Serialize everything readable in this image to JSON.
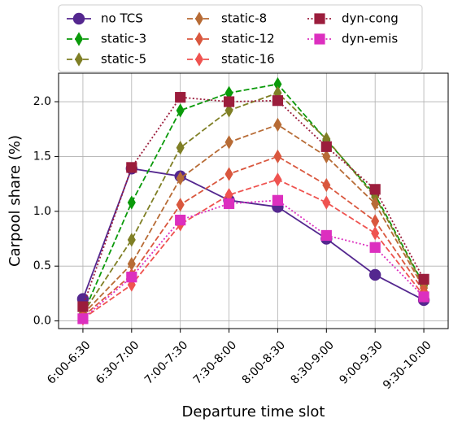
{
  "chart_data": {
    "type": "line",
    "title": "",
    "xlabel": "Departure time slot",
    "ylabel": "Carpool share (%)",
    "categories": [
      "6:00-6:30",
      "6:30-7:00",
      "7:00-7:30",
      "7:30-8:00",
      "8:00-8:30",
      "8:30-9:00",
      "9:00-9:30",
      "9:30-10:00"
    ],
    "ylim": [
      -0.07,
      2.26
    ],
    "yticks": [
      "0.0",
      "0.5",
      "1.0",
      "1.5",
      "2.0"
    ],
    "grid": true,
    "legend_position": "top, above plot, 3 columns",
    "series": [
      {
        "name": "no TCS",
        "color": "#54278f",
        "dash": "solid",
        "marker": "circle",
        "values": [
          0.2,
          1.39,
          1.32,
          1.1,
          1.04,
          0.75,
          0.42,
          0.19
        ]
      },
      {
        "name": "static-3",
        "color": "#0a9a0a",
        "dash": "dashed",
        "marker": "thin-diamond",
        "values": [
          0.06,
          1.08,
          1.92,
          2.08,
          2.16,
          1.65,
          1.15,
          0.33
        ]
      },
      {
        "name": "static-5",
        "color": "#7f7f25",
        "dash": "dashed",
        "marker": "thin-diamond",
        "values": [
          0.07,
          0.74,
          1.58,
          1.92,
          2.08,
          1.66,
          1.13,
          0.32
        ]
      },
      {
        "name": "static-8",
        "color": "#b76b35",
        "dash": "dashed",
        "marker": "thin-diamond",
        "values": [
          0.06,
          0.52,
          1.3,
          1.63,
          1.79,
          1.5,
          1.07,
          0.3
        ]
      },
      {
        "name": "static-12",
        "color": "#d9573e",
        "dash": "dashed",
        "marker": "thin-diamond",
        "values": [
          0.04,
          0.42,
          1.06,
          1.34,
          1.5,
          1.24,
          0.91,
          0.27
        ]
      },
      {
        "name": "static-16",
        "color": "#ef5350",
        "dash": "dashed",
        "marker": "thin-diamond",
        "values": [
          0.02,
          0.33,
          0.88,
          1.15,
          1.29,
          1.08,
          0.8,
          0.23
        ]
      },
      {
        "name": "dyn-cong",
        "color": "#9b1d3c",
        "dash": "dotted",
        "marker": "square",
        "values": [
          0.13,
          1.4,
          2.04,
          2.0,
          2.01,
          1.59,
          1.2,
          0.38
        ]
      },
      {
        "name": "dyn-emis",
        "color": "#dc2fbf",
        "dash": "dotted",
        "marker": "square",
        "values": [
          0.02,
          0.4,
          0.92,
          1.07,
          1.1,
          0.78,
          0.67,
          0.22
        ]
      }
    ]
  }
}
